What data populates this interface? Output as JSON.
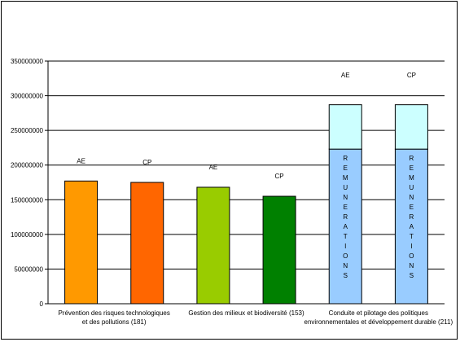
{
  "chart_data": {
    "type": "bar",
    "title": "",
    "xlabel": "",
    "ylabel": "",
    "ylim": [
      0,
      350000000
    ],
    "yticks": [
      0,
      50000000,
      100000000,
      150000000,
      200000000,
      250000000,
      300000000,
      350000000
    ],
    "ytick_labels": [
      "0",
      "50000000",
      "100000000",
      "150000000",
      "200000000",
      "250000000",
      "300000000",
      "350000000"
    ],
    "grid": true,
    "legend": "none",
    "groups": [
      {
        "label_lines": [
          "Prévention des risques technologiques",
          "et des pollutions (181)"
        ],
        "bars": [
          {
            "label": "AE",
            "value": 177000000,
            "color": "#ff9900"
          },
          {
            "label": "CP",
            "value": 175000000,
            "color": "#ff6600"
          }
        ]
      },
      {
        "label_lines": [
          "Gestion des milieux et biodiversité (153)"
        ],
        "bars": [
          {
            "label": "AE",
            "value": 168000000,
            "color": "#99cc00"
          },
          {
            "label": "CP",
            "value": 155000000,
            "color": "#008000"
          }
        ]
      },
      {
        "label_lines": [
          "Conduite et pilotage des politiques",
          "environnementales et développement durable (211)"
        ],
        "bars": [
          {
            "label": "AE",
            "value": 287000000,
            "stack": [
              {
                "value": 223000000,
                "color": "#99ccff",
                "text": "REMUNERATIONS"
              },
              {
                "value": 64000000,
                "color": "#ccffff",
                "text": ""
              }
            ]
          },
          {
            "label": "CP",
            "value": 287000000,
            "stack": [
              {
                "value": 223000000,
                "color": "#99ccff",
                "text": "REMUNERATIONS"
              },
              {
                "value": 64000000,
                "color": "#ccffff",
                "text": ""
              }
            ]
          }
        ]
      }
    ]
  }
}
